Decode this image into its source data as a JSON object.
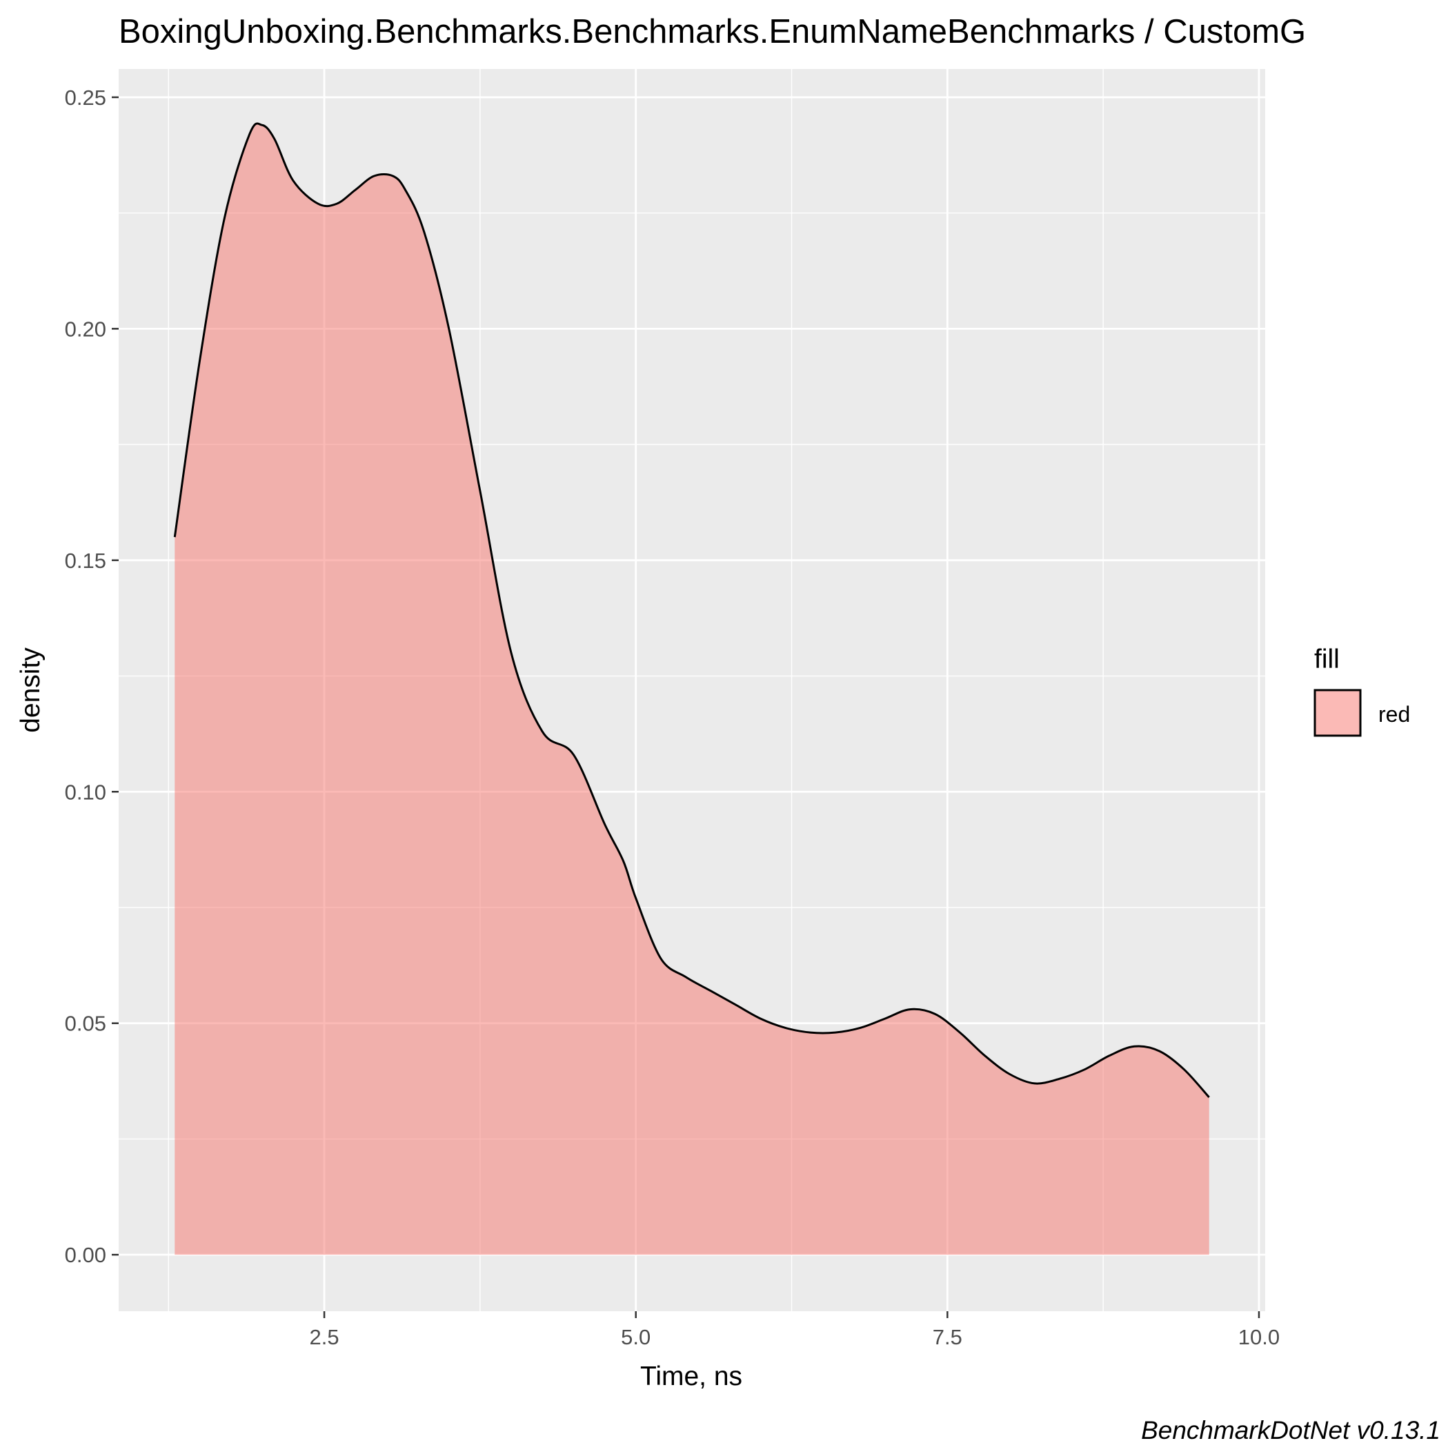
{
  "chart_data": {
    "type": "area",
    "title": "BoxingUnboxing.Benchmarks.Benchmarks.EnumNameBenchmarks / CustomG",
    "xlabel": "Time, ns",
    "ylabel": "density",
    "caption": "BenchmarkDotNet v0.13.1",
    "xlim": [
      0.85,
      10.05
    ],
    "ylim": [
      -0.0122,
      0.2561
    ],
    "x_ticks": [
      2.5,
      5.0,
      7.5,
      10.0
    ],
    "x_tick_labels": [
      "2.5",
      "5.0",
      "7.5",
      "10.0"
    ],
    "y_ticks": [
      0.0,
      0.05,
      0.1,
      0.15,
      0.2,
      0.25
    ],
    "y_tick_labels": [
      "0.00",
      "0.05",
      "0.10",
      "0.15",
      "0.20",
      "0.25"
    ],
    "grid": true,
    "legend": {
      "position": "right",
      "title": "fill",
      "entries": [
        {
          "label": "red",
          "color": "#F8766D"
        }
      ]
    },
    "series": [
      {
        "fill": "#F8766D",
        "fill_opacity": 0.5,
        "stroke": "#000000",
        "x": [
          1.3,
          1.5,
          1.7,
          1.9,
          2.0,
          2.1,
          2.25,
          2.45,
          2.6,
          2.75,
          2.9,
          3.05,
          3.15,
          3.3,
          3.5,
          3.75,
          4.0,
          4.25,
          4.5,
          4.75,
          4.9,
          5.0,
          5.2,
          5.4,
          5.6,
          5.8,
          6.0,
          6.2,
          6.4,
          6.6,
          6.8,
          7.0,
          7.2,
          7.4,
          7.6,
          7.8,
          8.0,
          8.2,
          8.4,
          8.6,
          8.8,
          9.0,
          9.2,
          9.4,
          9.6
        ],
        "y": [
          0.155,
          0.193,
          0.224,
          0.242,
          0.244,
          0.241,
          0.232,
          0.227,
          0.227,
          0.23,
          0.233,
          0.233,
          0.23,
          0.221,
          0.2,
          0.165,
          0.13,
          0.113,
          0.108,
          0.093,
          0.085,
          0.077,
          0.064,
          0.06,
          0.057,
          0.054,
          0.051,
          0.049,
          0.048,
          0.048,
          0.049,
          0.051,
          0.053,
          0.052,
          0.048,
          0.043,
          0.039,
          0.037,
          0.038,
          0.04,
          0.043,
          0.045,
          0.044,
          0.04,
          0.034
        ]
      }
    ]
  },
  "colors": {
    "panel_background": "#EBEBEB",
    "grid_major": "#FFFFFF",
    "axis_text": "#4D4D4D",
    "title_text": "#000000"
  }
}
